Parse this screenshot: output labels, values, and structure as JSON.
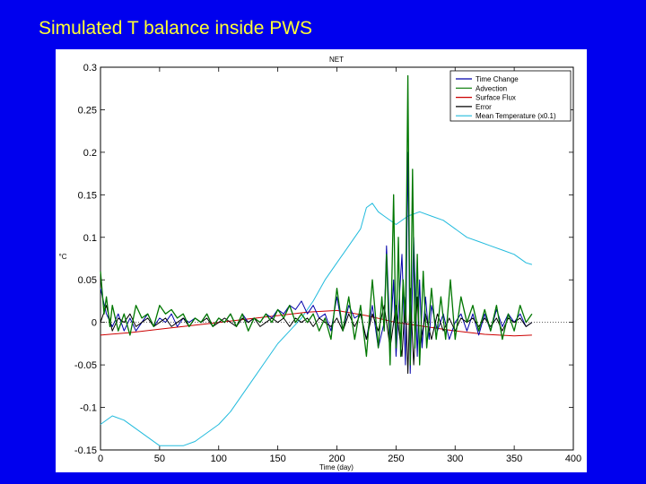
{
  "slide": {
    "title": "Simulated T balance inside PWS"
  },
  "chart_data": {
    "type": "line",
    "title": "NET",
    "xlabel": "Time (day)",
    "ylabel": "°C",
    "xlim": [
      0,
      400
    ],
    "ylim": [
      -0.15,
      0.3
    ],
    "xticks": [
      0,
      50,
      100,
      150,
      200,
      250,
      300,
      350,
      400
    ],
    "xtick_labels": [
      "0",
      "50",
      "100",
      "150",
      "200",
      "250",
      "300",
      "350",
      "400"
    ],
    "yticks": [
      -0.15,
      -0.1,
      -0.05,
      0,
      0.05,
      0.1,
      0.15,
      0.2,
      0.25,
      0.3
    ],
    "ytick_labels": [
      "-0.15",
      "-0.1",
      "-0.05",
      "0",
      "0.05",
      "0.1",
      "0.15",
      "0.2",
      "0.25",
      "0.3"
    ],
    "grid": false,
    "legend_position": "top-right",
    "series": [
      {
        "name": "Time Change",
        "color": "#0000aa",
        "x": [
          0,
          5,
          10,
          15,
          20,
          25,
          30,
          35,
          40,
          45,
          50,
          55,
          60,
          65,
          70,
          75,
          80,
          85,
          90,
          95,
          100,
          105,
          110,
          115,
          120,
          125,
          130,
          135,
          140,
          145,
          150,
          155,
          160,
          165,
          170,
          175,
          180,
          185,
          190,
          195,
          200,
          205,
          210,
          215,
          220,
          225,
          230,
          235,
          240,
          242,
          245,
          248,
          250,
          252,
          255,
          258,
          260,
          262,
          265,
          268,
          270,
          272,
          275,
          278,
          280,
          285,
          290,
          295,
          300,
          305,
          310,
          315,
          320,
          325,
          330,
          335,
          340,
          345,
          350,
          355,
          360,
          365
        ],
        "y": [
          0.04,
          0.01,
          -0.005,
          0.01,
          -0.01,
          0.005,
          -0.01,
          0.0,
          0.01,
          -0.005,
          0.005,
          0.0,
          0.01,
          -0.005,
          0.005,
          0.0,
          0.005,
          0.0,
          0.01,
          -0.005,
          0.005,
          0.0,
          0.01,
          -0.005,
          0.01,
          0.0,
          0.005,
          0.0,
          0.01,
          0.005,
          0.015,
          0.01,
          0.02,
          0.015,
          0.025,
          0.01,
          0.02,
          0.005,
          0.01,
          -0.01,
          0.03,
          -0.01,
          0.02,
          0.005,
          0.01,
          -0.02,
          0.02,
          -0.03,
          0.0,
          0.09,
          -0.02,
          0.05,
          -0.04,
          0.01,
          0.08,
          -0.05,
          0.2,
          -0.06,
          0.1,
          -0.04,
          0.05,
          -0.03,
          0.03,
          -0.02,
          0.02,
          -0.01,
          0.01,
          -0.02,
          0.0,
          0.01,
          -0.01,
          0.01,
          -0.015,
          0.01,
          -0.01,
          0.015,
          -0.005,
          0.01,
          0.0,
          0.01,
          -0.005,
          0.0
        ]
      },
      {
        "name": "Advection",
        "color": "#007700",
        "x": [
          0,
          3,
          5,
          8,
          10,
          15,
          20,
          25,
          30,
          35,
          40,
          45,
          50,
          55,
          60,
          65,
          70,
          75,
          80,
          85,
          90,
          95,
          100,
          105,
          110,
          115,
          120,
          125,
          130,
          135,
          140,
          145,
          150,
          155,
          160,
          165,
          170,
          175,
          180,
          185,
          190,
          195,
          200,
          205,
          210,
          215,
          220,
          225,
          230,
          235,
          238,
          240,
          242,
          245,
          248,
          250,
          252,
          254,
          256,
          258,
          260,
          262,
          264,
          266,
          268,
          270,
          273,
          276,
          280,
          284,
          288,
          292,
          296,
          300,
          305,
          310,
          315,
          320,
          325,
          330,
          335,
          340,
          345,
          350,
          355,
          360,
          365
        ],
        "y": [
          0.06,
          0.01,
          0.03,
          -0.005,
          0.02,
          -0.01,
          0.01,
          -0.015,
          0.02,
          0.005,
          0.01,
          -0.005,
          0.02,
          0.01,
          0.015,
          0.005,
          0.01,
          -0.005,
          0.005,
          0.0,
          0.01,
          -0.005,
          0.005,
          0.0,
          0.01,
          -0.005,
          0.01,
          -0.01,
          0.005,
          0.0,
          0.01,
          0.0,
          0.015,
          0.005,
          0.02,
          0.0,
          0.01,
          0.0,
          0.01,
          -0.01,
          0.005,
          -0.02,
          0.04,
          -0.01,
          0.03,
          -0.02,
          0.02,
          -0.04,
          0.05,
          -0.03,
          0.03,
          -0.01,
          0.08,
          -0.05,
          0.15,
          -0.03,
          0.1,
          -0.04,
          0.05,
          0.0,
          0.29,
          -0.05,
          0.18,
          -0.03,
          0.08,
          -0.05,
          0.06,
          -0.03,
          0.04,
          -0.02,
          0.03,
          -0.02,
          0.05,
          -0.02,
          0.03,
          0.0,
          0.02,
          -0.01,
          0.015,
          -0.01,
          0.02,
          -0.02,
          0.01,
          -0.01,
          0.02,
          0.0,
          0.01
        ]
      },
      {
        "name": "Surface Flux",
        "color": "#cc0000",
        "x": [
          0,
          25,
          50,
          75,
          100,
          125,
          150,
          175,
          200,
          225,
          250,
          275,
          300,
          325,
          350,
          365
        ],
        "y": [
          -0.015,
          -0.012,
          -0.008,
          -0.004,
          0.0,
          0.004,
          0.008,
          0.012,
          0.014,
          0.008,
          0.0,
          -0.005,
          -0.01,
          -0.014,
          -0.016,
          -0.015
        ]
      },
      {
        "name": "Error",
        "color": "#000000",
        "x": [
          0,
          5,
          10,
          15,
          20,
          25,
          30,
          35,
          40,
          45,
          50,
          55,
          60,
          65,
          70,
          75,
          80,
          85,
          90,
          95,
          100,
          105,
          110,
          115,
          120,
          125,
          130,
          135,
          140,
          145,
          150,
          155,
          160,
          165,
          170,
          175,
          180,
          185,
          190,
          195,
          200,
          205,
          210,
          215,
          220,
          225,
          230,
          235,
          240,
          245,
          250,
          255,
          258,
          260,
          262,
          265,
          268,
          270,
          275,
          280,
          285,
          290,
          295,
          300,
          305,
          310,
          315,
          320,
          325,
          330,
          335,
          340,
          345,
          350,
          355,
          360,
          365
        ],
        "y": [
          0.0,
          0.02,
          -0.01,
          0.005,
          0.0,
          0.01,
          -0.005,
          0.0,
          0.005,
          -0.005,
          0.0,
          0.005,
          -0.005,
          0.0,
          0.005,
          -0.005,
          0.005,
          0.0,
          0.005,
          -0.005,
          0.0,
          0.005,
          0.0,
          -0.005,
          0.005,
          0.0,
          0.005,
          -0.005,
          0.0,
          0.005,
          0.0,
          0.005,
          -0.005,
          0.005,
          0.0,
          0.005,
          -0.005,
          0.005,
          0.0,
          -0.005,
          0.005,
          -0.01,
          0.01,
          -0.005,
          0.01,
          -0.02,
          0.01,
          -0.01,
          0.02,
          -0.03,
          0.02,
          -0.04,
          0.03,
          -0.06,
          0.04,
          -0.05,
          0.03,
          -0.03,
          0.01,
          -0.02,
          0.01,
          -0.01,
          0.005,
          -0.01,
          0.005,
          0.0,
          0.005,
          -0.005,
          0.005,
          -0.005,
          0.005,
          -0.01,
          0.005,
          0.0,
          0.005,
          -0.005,
          0.0
        ]
      },
      {
        "name": "Mean Temperature (x0.1)",
        "color": "#22bbdd",
        "x": [
          0,
          10,
          20,
          30,
          40,
          50,
          60,
          70,
          80,
          90,
          100,
          110,
          120,
          130,
          140,
          150,
          160,
          170,
          180,
          190,
          200,
          210,
          220,
          225,
          230,
          235,
          240,
          250,
          260,
          270,
          280,
          290,
          300,
          310,
          320,
          330,
          340,
          350,
          360,
          365
        ],
        "y": [
          -0.12,
          -0.11,
          -0.115,
          -0.125,
          -0.135,
          -0.145,
          -0.145,
          -0.145,
          -0.14,
          -0.13,
          -0.12,
          -0.105,
          -0.085,
          -0.065,
          -0.045,
          -0.025,
          -0.01,
          0.005,
          0.025,
          0.05,
          0.07,
          0.09,
          0.11,
          0.135,
          0.14,
          0.13,
          0.125,
          0.115,
          0.125,
          0.13,
          0.125,
          0.12,
          0.11,
          0.1,
          0.095,
          0.09,
          0.085,
          0.08,
          0.07,
          0.068
        ]
      }
    ]
  }
}
